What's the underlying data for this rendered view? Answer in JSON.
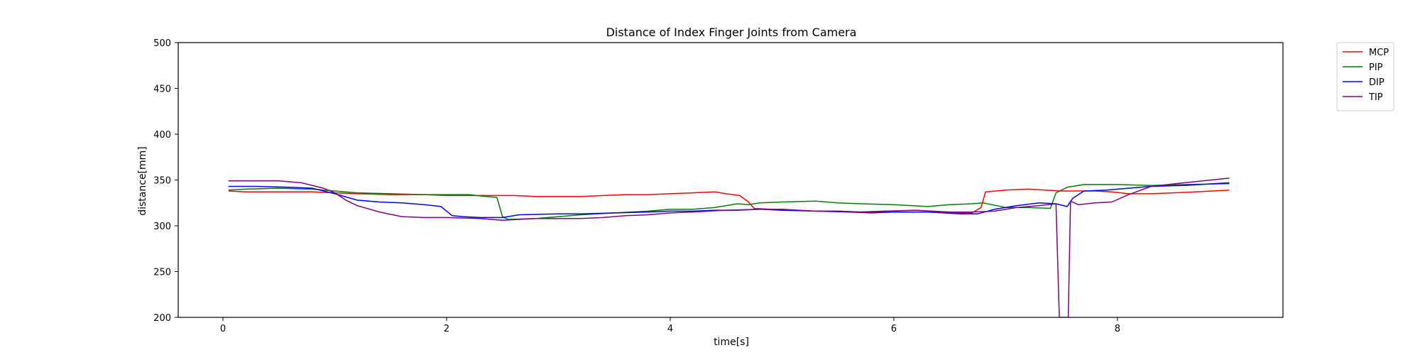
{
  "chart_data": {
    "type": "line",
    "title": "Distance of Index Finger Joints from Camera",
    "xlabel": "time[s]",
    "ylabel": "distance[mm]",
    "xlim": [
      -0.4,
      9.48
    ],
    "ylim": [
      200,
      500
    ],
    "xticks": [
      0,
      2,
      4,
      6,
      8
    ],
    "yticks": [
      200,
      250,
      300,
      350,
      400,
      450,
      500
    ],
    "grid": false,
    "legend_position": "outside-top-right",
    "series": [
      {
        "name": "MCP",
        "color": "#ff0000",
        "points": [
          [
            0.05,
            338
          ],
          [
            0.2,
            337
          ],
          [
            0.5,
            337
          ],
          [
            0.8,
            337
          ],
          [
            1.0,
            336
          ],
          [
            1.2,
            335
          ],
          [
            1.5,
            334
          ],
          [
            1.8,
            334
          ],
          [
            2.0,
            333
          ],
          [
            2.2,
            333
          ],
          [
            2.4,
            333
          ],
          [
            2.6,
            333
          ],
          [
            2.8,
            332
          ],
          [
            3.0,
            332
          ],
          [
            3.2,
            332
          ],
          [
            3.4,
            333
          ],
          [
            3.6,
            334
          ],
          [
            3.8,
            334
          ],
          [
            4.0,
            335
          ],
          [
            4.2,
            336
          ],
          [
            4.4,
            337
          ],
          [
            4.5,
            335
          ],
          [
            4.62,
            333
          ],
          [
            4.7,
            326
          ],
          [
            4.75,
            319
          ],
          [
            4.9,
            318
          ],
          [
            5.1,
            317
          ],
          [
            5.3,
            316
          ],
          [
            5.5,
            316
          ],
          [
            5.7,
            315
          ],
          [
            5.9,
            315
          ],
          [
            6.1,
            315
          ],
          [
            6.3,
            315
          ],
          [
            6.5,
            314
          ],
          [
            6.7,
            314
          ],
          [
            6.78,
            320
          ],
          [
            6.82,
            337
          ],
          [
            7.0,
            339
          ],
          [
            7.2,
            340
          ],
          [
            7.5,
            338
          ],
          [
            7.7,
            338
          ],
          [
            7.8,
            338
          ],
          [
            7.95,
            337
          ],
          [
            8.1,
            335
          ],
          [
            8.3,
            335
          ],
          [
            8.5,
            336
          ],
          [
            8.7,
            337
          ],
          [
            9.0,
            339
          ]
        ]
      },
      {
        "name": "PIP",
        "color": "#008000",
        "points": [
          [
            0.05,
            339
          ],
          [
            0.2,
            340
          ],
          [
            0.5,
            341
          ],
          [
            0.8,
            340
          ],
          [
            1.0,
            338
          ],
          [
            1.2,
            336
          ],
          [
            1.5,
            335
          ],
          [
            1.8,
            334
          ],
          [
            2.0,
            334
          ],
          [
            2.2,
            334
          ],
          [
            2.35,
            332
          ],
          [
            2.45,
            331
          ],
          [
            2.5,
            310
          ],
          [
            2.55,
            307
          ],
          [
            2.8,
            308
          ],
          [
            3.0,
            310
          ],
          [
            3.2,
            312
          ],
          [
            3.5,
            314
          ],
          [
            3.8,
            316
          ],
          [
            4.0,
            318
          ],
          [
            4.2,
            318
          ],
          [
            4.4,
            320
          ],
          [
            4.6,
            324
          ],
          [
            4.7,
            323
          ],
          [
            4.8,
            325
          ],
          [
            5.0,
            326
          ],
          [
            5.3,
            327
          ],
          [
            5.5,
            325
          ],
          [
            5.7,
            324
          ],
          [
            6.0,
            323
          ],
          [
            6.3,
            321
          ],
          [
            6.5,
            323
          ],
          [
            6.7,
            324
          ],
          [
            6.8,
            325
          ],
          [
            7.0,
            320
          ],
          [
            7.2,
            320
          ],
          [
            7.4,
            319
          ],
          [
            7.45,
            336
          ],
          [
            7.55,
            342
          ],
          [
            7.7,
            345
          ],
          [
            8.0,
            345
          ],
          [
            8.3,
            344
          ],
          [
            8.6,
            345
          ],
          [
            9.0,
            346
          ]
        ]
      },
      {
        "name": "DIP",
        "color": "#0000ff",
        "points": [
          [
            0.05,
            343
          ],
          [
            0.3,
            343
          ],
          [
            0.6,
            342
          ],
          [
            0.8,
            341
          ],
          [
            1.0,
            335
          ],
          [
            1.2,
            328
          ],
          [
            1.4,
            326
          ],
          [
            1.6,
            325
          ],
          [
            1.8,
            323
          ],
          [
            1.95,
            321
          ],
          [
            2.05,
            311
          ],
          [
            2.15,
            310
          ],
          [
            2.3,
            309
          ],
          [
            2.5,
            309
          ],
          [
            2.65,
            312
          ],
          [
            3.0,
            313
          ],
          [
            3.2,
            313
          ],
          [
            3.5,
            314
          ],
          [
            3.8,
            315
          ],
          [
            4.0,
            316
          ],
          [
            4.2,
            316
          ],
          [
            4.4,
            317
          ],
          [
            4.6,
            317
          ],
          [
            4.8,
            318
          ],
          [
            5.0,
            317
          ],
          [
            5.3,
            316
          ],
          [
            5.6,
            315
          ],
          [
            5.8,
            314
          ],
          [
            6.0,
            315
          ],
          [
            6.3,
            315
          ],
          [
            6.6,
            313
          ],
          [
            6.75,
            313
          ],
          [
            6.9,
            318
          ],
          [
            7.1,
            322
          ],
          [
            7.3,
            325
          ],
          [
            7.45,
            324
          ],
          [
            7.55,
            321
          ],
          [
            7.6,
            330
          ],
          [
            7.7,
            338
          ],
          [
            7.9,
            339
          ],
          [
            8.1,
            341
          ],
          [
            8.3,
            343
          ],
          [
            8.6,
            344
          ],
          [
            9.0,
            347
          ]
        ]
      },
      {
        "name": "TIP",
        "color": "#800080",
        "points": [
          [
            0.05,
            349
          ],
          [
            0.2,
            349
          ],
          [
            0.5,
            349
          ],
          [
            0.7,
            347
          ],
          [
            0.9,
            341
          ],
          [
            1.0,
            336
          ],
          [
            1.1,
            328
          ],
          [
            1.2,
            322
          ],
          [
            1.4,
            315
          ],
          [
            1.6,
            310
          ],
          [
            1.8,
            309
          ],
          [
            2.0,
            309
          ],
          [
            2.3,
            308
          ],
          [
            2.5,
            306
          ],
          [
            2.8,
            308
          ],
          [
            3.0,
            308
          ],
          [
            3.2,
            308
          ],
          [
            3.4,
            309
          ],
          [
            3.6,
            311
          ],
          [
            3.8,
            312
          ],
          [
            4.0,
            314
          ],
          [
            4.2,
            315
          ],
          [
            4.5,
            317
          ],
          [
            4.8,
            318
          ],
          [
            5.0,
            318
          ],
          [
            5.3,
            316
          ],
          [
            5.5,
            316
          ],
          [
            5.7,
            315
          ],
          [
            5.9,
            316
          ],
          [
            6.2,
            317
          ],
          [
            6.5,
            315
          ],
          [
            6.7,
            315
          ],
          [
            6.9,
            316
          ],
          [
            7.1,
            320
          ],
          [
            7.3,
            322
          ],
          [
            7.45,
            324
          ],
          [
            7.48,
            200
          ],
          [
            7.56,
            200
          ],
          [
            7.58,
            327
          ],
          [
            7.65,
            323
          ],
          [
            7.8,
            325
          ],
          [
            7.95,
            326
          ],
          [
            8.1,
            334
          ],
          [
            8.3,
            343
          ],
          [
            8.6,
            347
          ],
          [
            9.0,
            352
          ]
        ]
      }
    ]
  }
}
